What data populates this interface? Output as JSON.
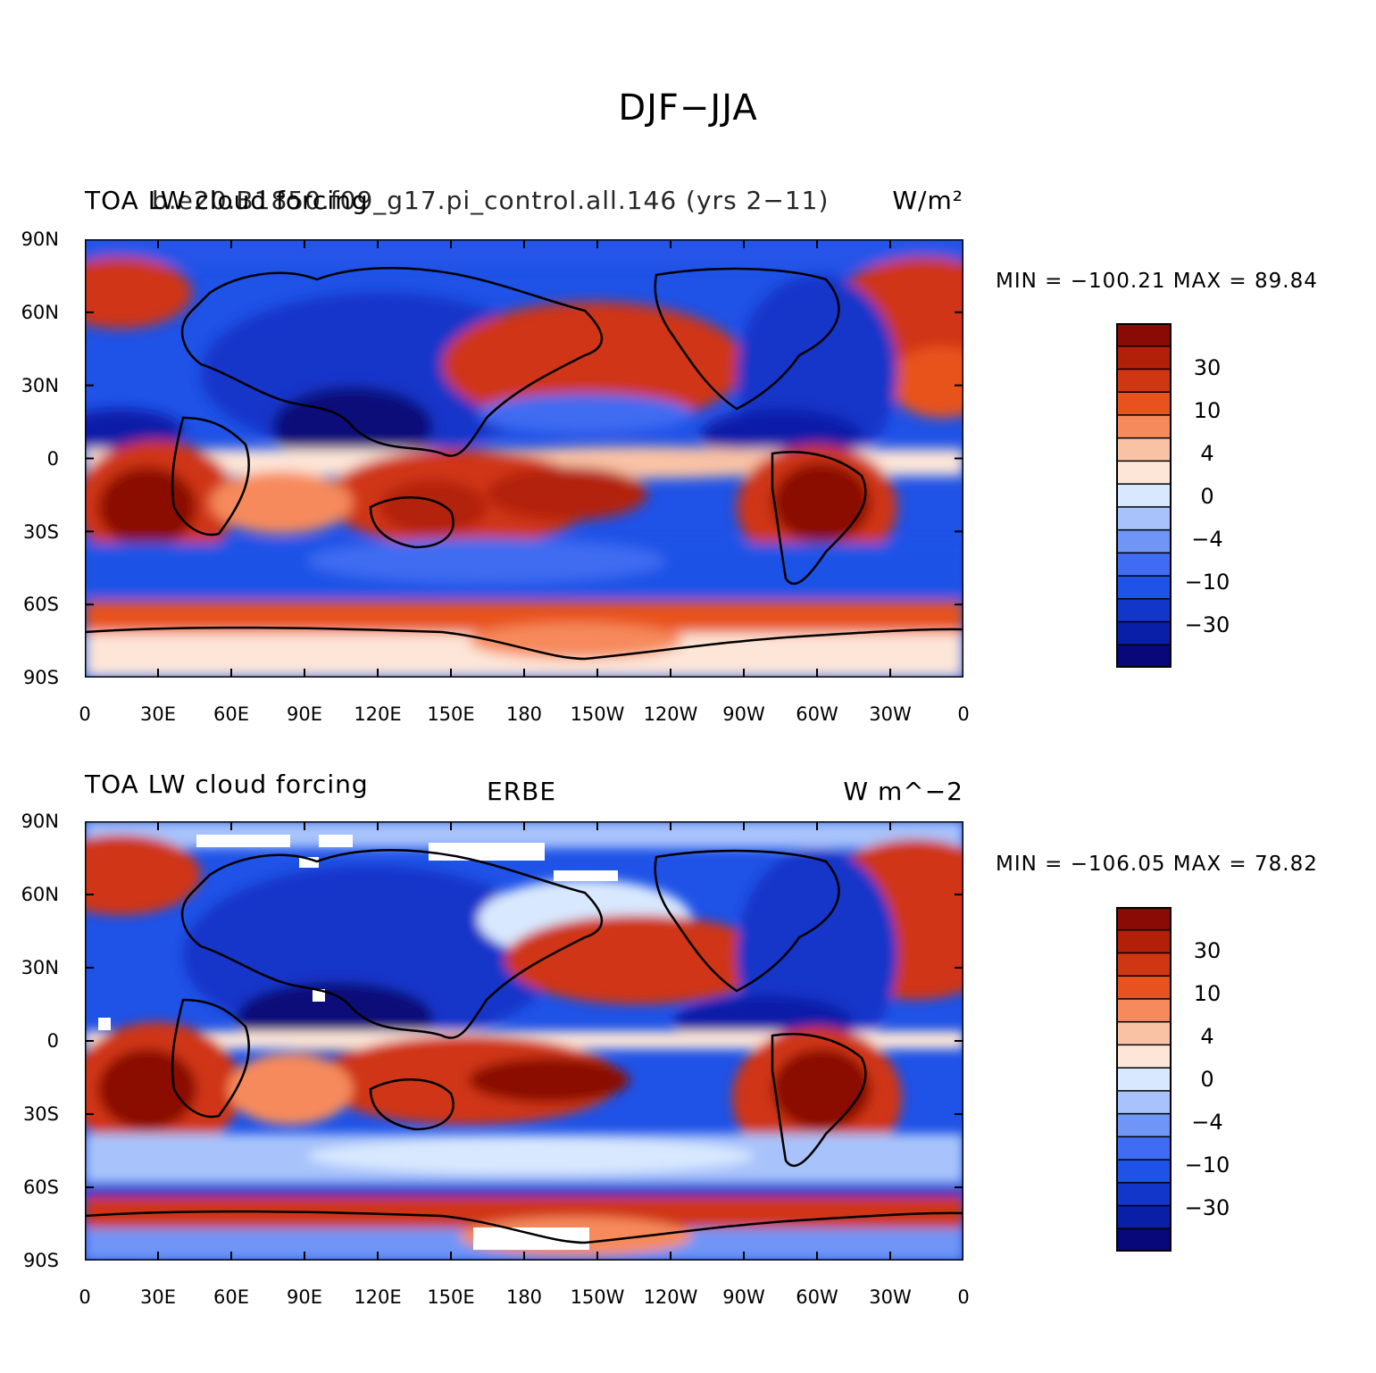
{
  "figure": {
    "title": "DJF−JJA"
  },
  "axes": {
    "lat_ticks": [
      "90N",
      "60N",
      "30N",
      "0",
      "30S",
      "60S",
      "90S"
    ],
    "lon_ticks": [
      "0",
      "30E",
      "60E",
      "90E",
      "120E",
      "150E",
      "180",
      "150W",
      "120W",
      "90W",
      "60W",
      "30W",
      "0"
    ]
  },
  "colors": {
    "levels_fill": [
      "#08087a",
      "#0a1fa8",
      "#1236c9",
      "#1f52e6",
      "#3f6cf2",
      "#6f95f7",
      "#a8c3fb",
      "#d8e8fe",
      "#fde6d8",
      "#f9c2a5",
      "#f68a5c",
      "#e8521f",
      "#cf3612",
      "#b3200a",
      "#8a0a05"
    ]
  },
  "panels": [
    {
      "label_left": "TOA LW cloud forcing",
      "label_left_overlap": "b.e20.B1850.f09_g17.pi_control.all.146 (yrs 2−11)",
      "label_center": "",
      "label_right": "W/m²",
      "stats": "MIN = −100.21  MAX =   89.84",
      "colorbar_labels": [
        "30",
        "10",
        "4",
        "0",
        "−4",
        "−10",
        "−30"
      ]
    },
    {
      "label_left": "TOA LW cloud forcing",
      "label_left_overlap": "",
      "label_center": "ERBE",
      "label_right": "W m^−2",
      "stats": "MIN = −106.05  MAX =   78.82",
      "colorbar_labels": [
        "30",
        "10",
        "4",
        "0",
        "−4",
        "−10",
        "−30"
      ]
    }
  ],
  "chart_data": [
    {
      "type": "heatmap",
      "title": "TOA LW cloud forcing",
      "subtitle": "b.e20.B1850.f09_g17.pi_control.all.146 (yrs 2−11)",
      "units": "W/m²",
      "x_ticks": [
        "0",
        "30E",
        "60E",
        "90E",
        "120E",
        "150E",
        "180",
        "150W",
        "120W",
        "90W",
        "60W",
        "30W",
        "0"
      ],
      "y_ticks": [
        "90N",
        "60N",
        "30N",
        "0",
        "30S",
        "60S",
        "90S"
      ],
      "xlim": [
        0,
        360
      ],
      "ylim": [
        -90,
        90
      ],
      "min": -100.21,
      "max": 89.84,
      "contour_levels": [
        -50,
        -40,
        -30,
        -20,
        -10,
        -6,
        -4,
        -2,
        0,
        2,
        4,
        6,
        10,
        20,
        30,
        40,
        50
      ],
      "colorbar_labels": [
        "30",
        "10",
        "4",
        "0",
        "−4",
        "−10",
        "−30"
      ]
    },
    {
      "type": "heatmap",
      "title": "TOA LW cloud forcing",
      "subtitle": "ERBE",
      "units": "W m^−2",
      "x_ticks": [
        "0",
        "30E",
        "60E",
        "90E",
        "120E",
        "150E",
        "180",
        "150W",
        "120W",
        "90W",
        "60W",
        "30W",
        "0"
      ],
      "y_ticks": [
        "90N",
        "60N",
        "30N",
        "0",
        "30S",
        "60S",
        "90S"
      ],
      "xlim": [
        0,
        360
      ],
      "ylim": [
        -90,
        90
      ],
      "min": -106.05,
      "max": 78.82,
      "contour_levels": [
        -50,
        -40,
        -30,
        -20,
        -10,
        -6,
        -4,
        -2,
        0,
        2,
        4,
        6,
        10,
        20,
        30,
        40,
        50
      ],
      "colorbar_labels": [
        "30",
        "10",
        "4",
        "0",
        "−4",
        "−10",
        "−30"
      ]
    }
  ]
}
